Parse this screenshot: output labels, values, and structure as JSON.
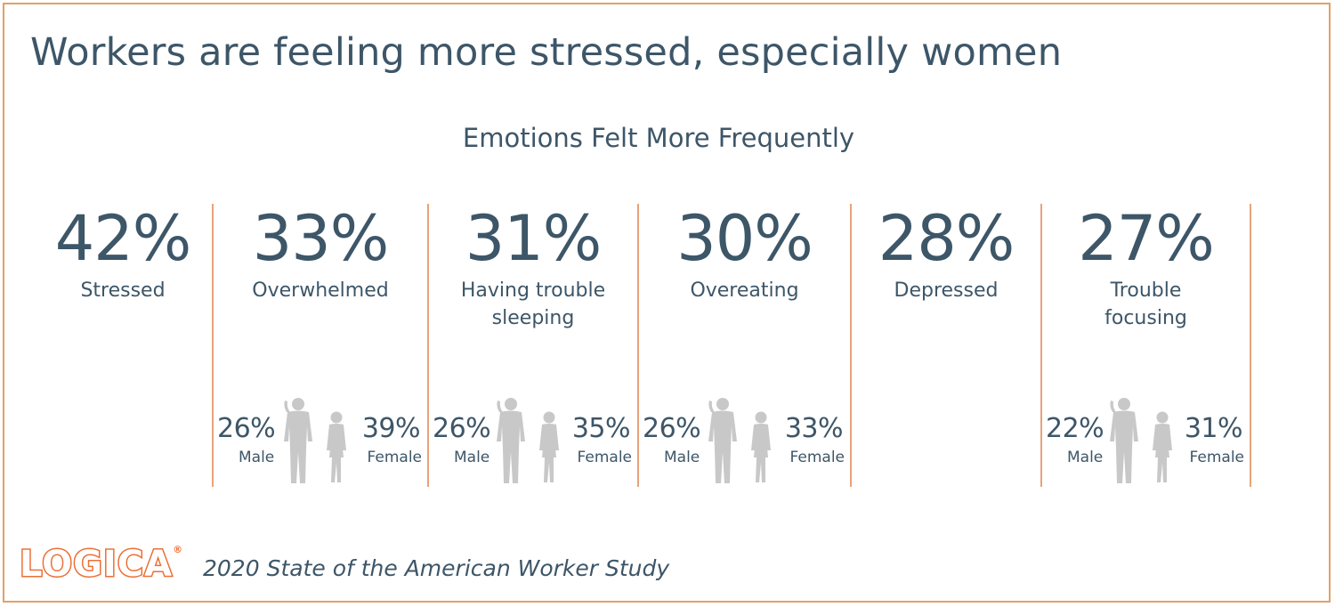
{
  "title": "Workers are feeling more stressed, especially women",
  "chart_data": {
    "type": "table",
    "title": "Emotions Felt More Frequently",
    "categories": [
      "Stressed",
      "Overwhelmed",
      "Having trouble sleeping",
      "Overeating",
      "Depressed",
      "Trouble focusing"
    ],
    "items": [
      {
        "label": "Stressed",
        "value": "42%",
        "male": null,
        "female": null
      },
      {
        "label": "Overwhelmed",
        "value": "33%",
        "male": "26%",
        "female": "39%"
      },
      {
        "label": "Having trouble\nsleeping",
        "value": "31%",
        "male": "26%",
        "female": "35%"
      },
      {
        "label": "Overeating",
        "value": "30%",
        "male": "26%",
        "female": "33%"
      },
      {
        "label": "Depressed",
        "value": "28%",
        "male": null,
        "female": null
      },
      {
        "label": "Trouble\nfocusing",
        "value": "27%",
        "male": "22%",
        "female": "31%"
      }
    ],
    "male_label": "Male",
    "female_label": "Female",
    "colors": {
      "text": "#3d5668",
      "divider": "#e7a37a",
      "figure": "#c8c8c8",
      "border": "#e2a068"
    }
  },
  "footer": {
    "logo": "LOGICA",
    "logo_mark": "®",
    "source": "2020 State of the American Worker Study"
  },
  "colors": {
    "brand": "#ec6f36"
  }
}
